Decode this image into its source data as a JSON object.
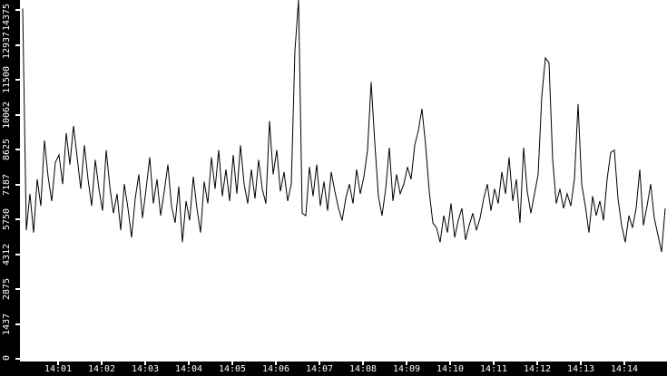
{
  "chart_data": {
    "type": "line",
    "title": "",
    "xlabel": "",
    "ylabel": "",
    "grid": false,
    "legend": false,
    "background_color": "#ffffff",
    "line_color": "#000000",
    "axis_bar_color": "#000000",
    "axis_text_color": "#ffffff",
    "ylim": [
      0,
      14375
    ],
    "y_tick_labels": [
      "0",
      "1437",
      "2875",
      "4312",
      "5750",
      "7187",
      "8625",
      "10062",
      "11500",
      "12937",
      "14375"
    ],
    "x_tick_labels": [
      "14:01",
      "14:02",
      "14:03",
      "14:04",
      "14:05",
      "14:06",
      "14:07",
      "14:08",
      "14:09",
      "14:10",
      "14:11",
      "14:12",
      "14:13",
      "14:14"
    ],
    "x_start_time": "14:00:11",
    "x_step_seconds": 5,
    "values": [
      14430,
      5300,
      6800,
      5200,
      7400,
      6300,
      9000,
      7500,
      6500,
      8100,
      8400,
      7200,
      9300,
      8000,
      9600,
      8300,
      7000,
      8800,
      7400,
      6300,
      8200,
      7000,
      6100,
      8600,
      7100,
      6000,
      6800,
      5300,
      7200,
      6200,
      5000,
      6600,
      7600,
      5800,
      7000,
      8300,
      6400,
      7400,
      5900,
      6900,
      8000,
      6300,
      5600,
      7100,
      4800,
      6500,
      5700,
      7500,
      6200,
      5200,
      7300,
      6400,
      8300,
      7000,
      8600,
      6700,
      7800,
      6500,
      8400,
      6800,
      8800,
      7200,
      6400,
      7800,
      6600,
      8200,
      7000,
      6400,
      9800,
      7600,
      8600,
      6900,
      7700,
      6500,
      7200,
      12700,
      14800,
      6000,
      5900,
      7900,
      6700,
      8000,
      6300,
      7300,
      6100,
      7700,
      6900,
      6200,
      5700,
      6600,
      7200,
      6400,
      7800,
      6800,
      7500,
      8600,
      11400,
      8900,
      6700,
      5900,
      7000,
      8700,
      6500,
      7600,
      6800,
      7200,
      7900,
      7400,
      8800,
      9400,
      10300,
      8800,
      6900,
      5600,
      5400,
      4800,
      5900,
      5200,
      6400,
      5000,
      5700,
      6200,
      4900,
      5500,
      6000,
      5300,
      5800,
      6600,
      7200,
      6100,
      7000,
      6400,
      7700,
      6800,
      8300,
      6500,
      7400,
      5600,
      8700,
      6900,
      6000,
      6800,
      7600,
      10800,
      12400,
      12200,
      8200,
      6400,
      7000,
      6200,
      6800,
      6300,
      7400,
      10500,
      7200,
      6300,
      5200,
      6700,
      5900,
      6500,
      5700,
      7400,
      8500,
      8600,
      6600,
      5500,
      4800,
      5900,
      5400,
      6200,
      7800,
      5500,
      6300,
      7200,
      5800,
      5100,
      4400,
      6200
    ]
  }
}
